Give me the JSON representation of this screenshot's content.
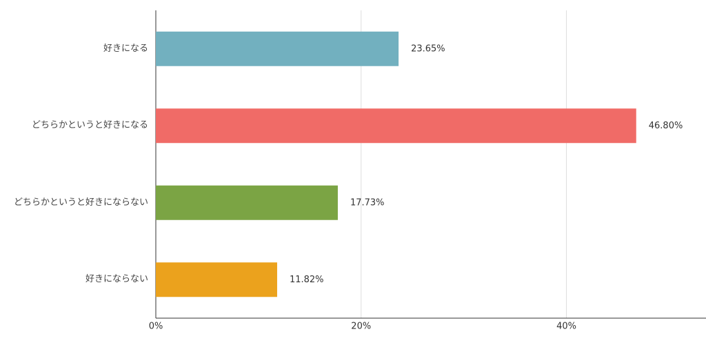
{
  "chart_data": {
    "type": "bar",
    "orientation": "horizontal",
    "categories": [
      "好きになる",
      "どちらかというと好きになる",
      "どちらかというと好きにならない",
      "好きにならない"
    ],
    "values": [
      23.65,
      46.8,
      17.73,
      11.82
    ],
    "value_labels": [
      "23.65%",
      "46.80%",
      "17.73%",
      "11.82%"
    ],
    "colors": [
      "#72b0bf",
      "#f06b67",
      "#7ba444",
      "#eba21d"
    ],
    "xlim": [
      0,
      53.6
    ],
    "xticks": [
      {
        "value": 0,
        "label": "0%"
      },
      {
        "value": 20,
        "label": "20%"
      },
      {
        "value": 40,
        "label": "40%"
      }
    ],
    "grid": true
  }
}
